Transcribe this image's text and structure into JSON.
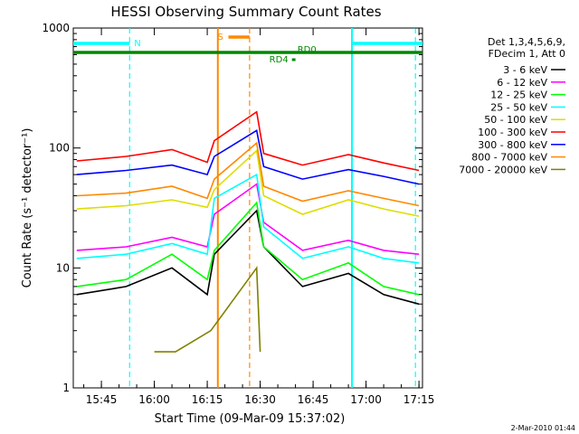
{
  "chart_data": {
    "type": "line",
    "title": "HESSI Observing Summary Count Rates",
    "xlabel": "Start Time (09-Mar-09 15:37:02)",
    "ylabel": "Count Rate (s⁻¹ detector⁻¹)",
    "xlim": [
      "15:37:02",
      "17:16:00"
    ],
    "ylim": [
      1,
      1000
    ],
    "yscale": "log",
    "x_ticks": [
      "15:45",
      "16:00",
      "16:15",
      "16:30",
      "16:45",
      "17:00",
      "17:15"
    ],
    "y_ticks": [
      "1",
      "10",
      "100",
      "1000"
    ],
    "legend_header": [
      "Det 1,3,4,5,6,9,",
      "FDecim 1, Att 0"
    ],
    "legend_position": "right",
    "grid": false,
    "series": [
      {
        "name": "3 - 6 keV",
        "color": "#000000",
        "x": [
          "15:38",
          "15:52",
          "16:05",
          "16:15",
          "16:17",
          "16:29",
          "16:31",
          "16:42",
          "16:55",
          "17:05",
          "17:15"
        ],
        "y": [
          6,
          7,
          10,
          6,
          13,
          30,
          15,
          7,
          9,
          6,
          5
        ]
      },
      {
        "name": "6 - 12 keV",
        "color": "#ff00ff",
        "x": [
          "15:38",
          "15:52",
          "16:05",
          "16:15",
          "16:17",
          "16:29",
          "16:31",
          "16:42",
          "16:55",
          "17:05",
          "17:15"
        ],
        "y": [
          14,
          15,
          18,
          15,
          28,
          50,
          24,
          14,
          17,
          14,
          13
        ]
      },
      {
        "name": "12 - 25 keV",
        "color": "#00ff00",
        "x": [
          "15:38",
          "15:52",
          "16:05",
          "16:15",
          "16:17",
          "16:29",
          "16:31",
          "16:42",
          "16:55",
          "17:05",
          "17:15"
        ],
        "y": [
          7,
          8,
          13,
          8,
          14,
          35,
          15,
          8,
          11,
          7,
          6
        ]
      },
      {
        "name": "25 - 50 keV",
        "color": "#00ffff",
        "x": [
          "15:38",
          "15:52",
          "16:05",
          "16:15",
          "16:17",
          "16:29",
          "16:31",
          "16:42",
          "16:55",
          "17:05",
          "17:15"
        ],
        "y": [
          12,
          13,
          16,
          13,
          38,
          60,
          22,
          12,
          15,
          12,
          11
        ]
      },
      {
        "name": "50 - 100 keV",
        "color": "#dddd00",
        "x": [
          "15:38",
          "15:52",
          "16:05",
          "16:15",
          "16:17",
          "16:29",
          "16:31",
          "16:42",
          "16:55",
          "17:05",
          "17:15"
        ],
        "y": [
          31,
          33,
          37,
          32,
          45,
          95,
          40,
          28,
          37,
          31,
          27
        ]
      },
      {
        "name": "100 - 300 keV",
        "color": "#ff0000",
        "x": [
          "15:38",
          "15:52",
          "16:05",
          "16:15",
          "16:17",
          "16:29",
          "16:31",
          "16:42",
          "16:55",
          "17:05",
          "17:15"
        ],
        "y": [
          78,
          85,
          97,
          76,
          115,
          200,
          90,
          72,
          88,
          75,
          65
        ]
      },
      {
        "name": "300 - 800 keV",
        "color": "#0000ff",
        "x": [
          "15:38",
          "15:52",
          "16:05",
          "16:15",
          "16:17",
          "16:29",
          "16:31",
          "16:42",
          "16:55",
          "17:05",
          "17:15"
        ],
        "y": [
          60,
          65,
          72,
          60,
          85,
          140,
          70,
          55,
          66,
          58,
          50
        ]
      },
      {
        "name": "800 - 7000 keV",
        "color": "#ff8800",
        "x": [
          "15:38",
          "15:52",
          "16:05",
          "16:15",
          "16:17",
          "16:29",
          "16:31",
          "16:42",
          "16:55",
          "17:05",
          "17:15"
        ],
        "y": [
          40,
          42,
          48,
          38,
          55,
          110,
          48,
          36,
          44,
          38,
          33
        ]
      },
      {
        "name": "7000 - 20000 keV",
        "color": "#808000",
        "x": [
          "16:00",
          "16:02",
          "16:04",
          "16:06",
          "16:16",
          "16:29",
          "16:30"
        ],
        "y": [
          2,
          2,
          2,
          2,
          3,
          10,
          2
        ]
      }
    ],
    "flags": [
      {
        "label": "N",
        "color": "#00ffff",
        "start": "15:37:02",
        "end": "15:53"
      },
      {
        "label": "",
        "color": "#00ffff",
        "start": "16:56",
        "end": "17:16"
      },
      {
        "label": "S",
        "color": "#ff8800",
        "start": "16:21",
        "end": "16:27"
      },
      {
        "label": "RD0",
        "color": "#008800",
        "start": "15:37:02",
        "end": "17:16"
      },
      {
        "label": "RD4",
        "color": "#008800",
        "start": "16:39",
        "end": "16:40"
      }
    ],
    "vlines": [
      {
        "t": "15:53",
        "color": "#00ffff",
        "style": "dashed"
      },
      {
        "t": "16:56",
        "color": "#00ffff",
        "style": "solid"
      },
      {
        "t": "17:14",
        "color": "#00ffff",
        "style": "dashed"
      },
      {
        "t": "16:18",
        "color": "#ff8800",
        "style": "solid"
      },
      {
        "t": "16:27",
        "color": "#ff8800",
        "style": "dashed"
      }
    ],
    "footer_date": "2-Mar-2010 01:44"
  }
}
